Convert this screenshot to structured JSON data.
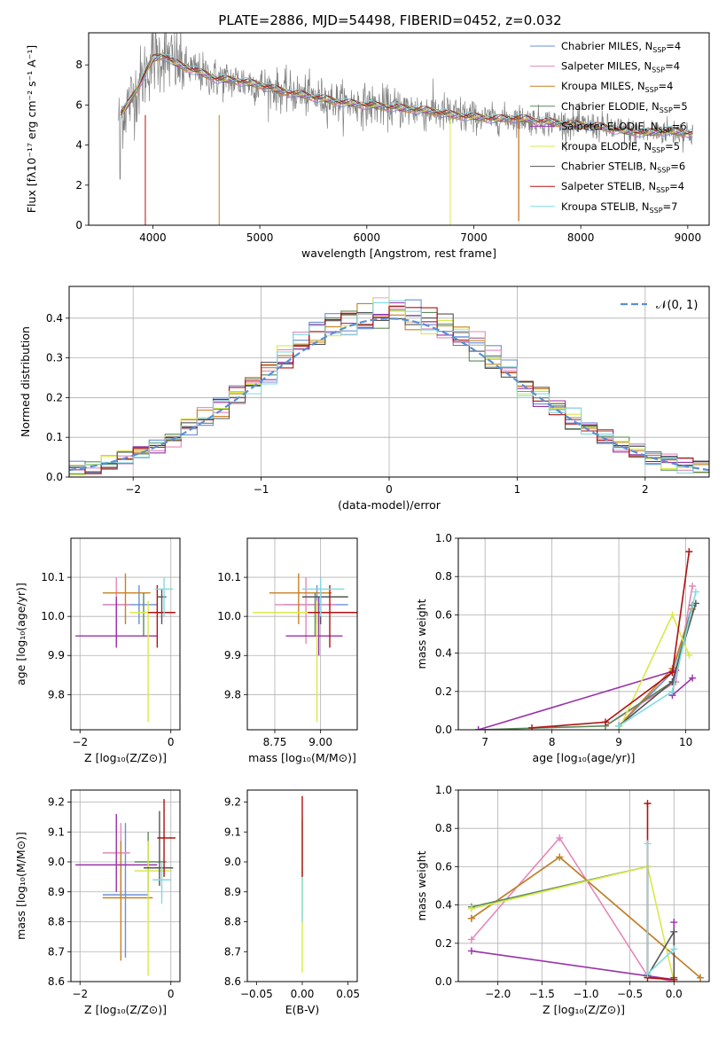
{
  "figure_title": "PLATE=2886, MJD=54498, FIBERID=0452, z=0.032",
  "series": [
    {
      "name": "Chabrier MILES",
      "nssp": "4",
      "color": "#6a8fd8"
    },
    {
      "name": "Salpeter MILES",
      "nssp": "4",
      "color": "#e687b9"
    },
    {
      "name": "Kroupa MILES",
      "nssp": "4",
      "color": "#c8801f"
    },
    {
      "name": "Chabrier ELODIE",
      "nssp": "5",
      "color": "#5c8a5c"
    },
    {
      "name": "Salpeter ELODIE",
      "nssp": "6",
      "color": "#9932aa"
    },
    {
      "name": "Kroupa ELODIE",
      "nssp": "5",
      "color": "#d9e84a"
    },
    {
      "name": "Chabrier STELIB",
      "nssp": "6",
      "color": "#555555"
    },
    {
      "name": "Salpeter STELIB",
      "nssp": "4",
      "color": "#b01010"
    },
    {
      "name": "Kroupa STELIB",
      "nssp": "7",
      "color": "#7fdbe0"
    }
  ],
  "data_color": "#808080",
  "chart_data": [
    {
      "id": "spectrum",
      "type": "line",
      "xlabel": "wavelength [Angstrom, rest frame]",
      "ylabel": "Flux [fλ10⁻¹⁷ erg cm⁻² s⁻¹ A⁻¹]",
      "xlim": [
        3400,
        9200
      ],
      "ylim": [
        0,
        9.6
      ],
      "xticks": [
        4000,
        5000,
        6000,
        7000,
        8000,
        9000
      ],
      "yticks": [
        0,
        2,
        4,
        6,
        8
      ],
      "legend": "top-right",
      "grid": false,
      "continuum": [
        [
          3700,
          5.5
        ],
        [
          3800,
          6.3
        ],
        [
          3900,
          7.3
        ],
        [
          4000,
          8.3
        ],
        [
          4100,
          8.5
        ],
        [
          4200,
          8.1
        ],
        [
          4400,
          7.7
        ],
        [
          4600,
          7.3
        ],
        [
          4800,
          7.2
        ],
        [
          5000,
          7.0
        ],
        [
          5200,
          6.7
        ],
        [
          5400,
          6.5
        ],
        [
          5600,
          6.3
        ],
        [
          5800,
          6.1
        ],
        [
          6000,
          6.0
        ],
        [
          6200,
          5.9
        ],
        [
          6400,
          5.8
        ],
        [
          6600,
          5.7
        ],
        [
          6800,
          5.5
        ],
        [
          7000,
          5.4
        ],
        [
          7200,
          5.3
        ],
        [
          7400,
          5.35
        ],
        [
          7600,
          5.2
        ],
        [
          7800,
          5.1
        ],
        [
          8000,
          5.0
        ],
        [
          8200,
          4.9
        ],
        [
          8400,
          4.7
        ],
        [
          8600,
          4.6
        ],
        [
          8800,
          4.7
        ],
        [
          9000,
          4.6
        ]
      ]
    },
    {
      "id": "residuals",
      "type": "histogram",
      "xlabel": "(data-model)/error",
      "ylabel": "Normed distribution",
      "xlim": [
        -2.5,
        2.5
      ],
      "ylim": [
        0,
        0.48
      ],
      "xticks": [
        -2,
        -1,
        0,
        1,
        2
      ],
      "yticks": [
        0.0,
        0.1,
        0.2,
        0.3,
        0.4
      ],
      "legend": "top-right",
      "grid": true,
      "reference_label": "𝒩(0, 1)",
      "reference_color": "#5b8fd4"
    },
    {
      "id": "age_vs_Z",
      "type": "errorbar",
      "xlabel": "Z [log₁₀(Z/Z⊙)]",
      "ylabel": "age  [log₁₀(age/yr)]",
      "xlim": [
        -2.2,
        0.2
      ],
      "ylim": [
        9.71,
        10.2
      ],
      "xticks": [
        -2,
        0
      ],
      "yticks": [
        9.8,
        9.9,
        10.0,
        10.1
      ],
      "grid": true,
      "points": [
        {
          "s": 0,
          "x": -0.7,
          "y": 10.03,
          "xe": [
            -1.5,
            -0.3
          ],
          "ye": [
            9.98,
            10.08
          ]
        },
        {
          "s": 1,
          "x": -1.2,
          "y": 10.03,
          "xe": [
            -1.5,
            -0.9
          ],
          "ye": [
            9.93,
            10.1
          ]
        },
        {
          "s": 2,
          "x": -1.0,
          "y": 10.06,
          "xe": [
            -1.5,
            -0.45
          ],
          "ye": [
            9.98,
            10.11
          ]
        },
        {
          "s": 3,
          "x": -0.6,
          "y": 10.01,
          "xe": [
            -0.9,
            -0.2
          ],
          "ye": [
            9.95,
            10.06
          ]
        },
        {
          "s": 4,
          "x": -1.2,
          "y": 9.95,
          "xe": [
            -2.1,
            -0.3
          ],
          "ye": [
            9.92,
            10.05
          ]
        },
        {
          "s": 5,
          "x": -0.5,
          "y": 10.01,
          "xe": [
            -0.9,
            -0.1
          ],
          "ye": [
            9.73,
            10.04
          ]
        },
        {
          "s": 6,
          "x": -0.2,
          "y": 10.05,
          "xe": [
            -0.3,
            -0.1
          ],
          "ye": [
            9.98,
            10.07
          ]
        },
        {
          "s": 7,
          "x": -0.3,
          "y": 10.01,
          "xe": [
            -0.5,
            0.1
          ],
          "ye": [
            9.92,
            10.08
          ]
        },
        {
          "s": 8,
          "x": -0.15,
          "y": 10.07,
          "xe": [
            -0.35,
            0.05
          ],
          "ye": [
            10.0,
            10.1
          ]
        }
      ]
    },
    {
      "id": "age_vs_mass",
      "type": "errorbar",
      "xlabel": "mass [log₁₀(M/M⊙)]",
      "ylabel": "",
      "xlim": [
        8.6,
        9.2
      ],
      "ylim": [
        9.71,
        10.2
      ],
      "xticks": [
        8.75,
        9.0
      ],
      "yticks": [
        9.8,
        9.9,
        10.0,
        10.1
      ],
      "grid": true,
      "points": [
        {
          "s": 0,
          "x": 8.98,
          "y": 10.03,
          "xe": [
            8.8,
            9.15
          ],
          "ye": [
            9.98,
            10.08
          ]
        },
        {
          "s": 1,
          "x": 8.92,
          "y": 10.03,
          "xe": [
            8.75,
            9.08
          ],
          "ye": [
            9.93,
            10.1
          ]
        },
        {
          "s": 2,
          "x": 8.88,
          "y": 10.06,
          "xe": [
            8.72,
            9.06
          ],
          "ye": [
            9.98,
            10.11
          ]
        },
        {
          "s": 3,
          "x": 8.97,
          "y": 10.01,
          "xe": [
            8.85,
            9.07
          ],
          "ye": [
            9.95,
            10.06
          ]
        },
        {
          "s": 4,
          "x": 8.99,
          "y": 9.95,
          "xe": [
            8.81,
            9.12
          ],
          "ye": [
            9.9,
            10.05
          ]
        },
        {
          "s": 5,
          "x": 8.98,
          "y": 10.01,
          "xe": [
            8.63,
            9.1
          ],
          "ye": [
            9.73,
            10.04
          ]
        },
        {
          "s": 6,
          "x": 9.0,
          "y": 10.05,
          "xe": [
            8.9,
            9.15
          ],
          "ye": [
            9.98,
            10.07
          ]
        },
        {
          "s": 7,
          "x": 9.05,
          "y": 10.01,
          "xe": [
            8.93,
            9.2
          ],
          "ye": [
            9.92,
            10.08
          ]
        },
        {
          "s": 8,
          "x": 9.0,
          "y": 10.07,
          "xe": [
            8.9,
            9.13
          ],
          "ye": [
            10.0,
            10.1
          ]
        }
      ]
    },
    {
      "id": "weight_vs_age",
      "type": "line",
      "xlabel": "age  [log₁₀(age/yr)]",
      "ylabel": "mass weight",
      "xlim": [
        6.6,
        10.35
      ],
      "ylim": [
        0,
        1.0
      ],
      "xticks": [
        7,
        8,
        9,
        10
      ],
      "yticks": [
        0.0,
        0.2,
        0.4,
        0.6,
        0.8,
        1.0
      ],
      "grid": true,
      "lines": [
        {
          "s": 0,
          "x": [
            9.0,
            9.8,
            10.1
          ],
          "y": [
            0.02,
            0.3,
            0.65
          ]
        },
        {
          "s": 1,
          "x": [
            8.8,
            9.85,
            10.1
          ],
          "y": [
            0.02,
            0.25,
            0.75
          ]
        },
        {
          "s": 2,
          "x": [
            9.0,
            9.8,
            10.1
          ],
          "y": [
            0.02,
            0.32,
            0.63
          ]
        },
        {
          "s": 3,
          "x": [
            6.9,
            8.8,
            9.8,
            10.1
          ],
          "y": [
            0.0,
            0.02,
            0.25,
            0.65
          ]
        },
        {
          "s": 4,
          "x": [
            6.9,
            9.85,
            9.8,
            10.1
          ],
          "y": [
            0.0,
            0.31,
            0.18,
            0.27
          ]
        },
        {
          "s": 5,
          "x": [
            9.0,
            9.8,
            10.05
          ],
          "y": [
            0.0,
            0.6,
            0.39
          ]
        },
        {
          "s": 6,
          "x": [
            9.0,
            9.8,
            10.15
          ],
          "y": [
            0.02,
            0.25,
            0.66
          ]
        },
        {
          "s": 7,
          "x": [
            7.7,
            8.8,
            9.8,
            10.05
          ],
          "y": [
            0.01,
            0.04,
            0.3,
            0.93
          ]
        },
        {
          "s": 8,
          "x": [
            9.0,
            9.8,
            10.15
          ],
          "y": [
            0.02,
            0.2,
            0.72
          ]
        }
      ]
    },
    {
      "id": "mass_vs_Z",
      "type": "errorbar",
      "xlabel": "Z [log₁₀(Z/Z⊙)]",
      "ylabel": "mass [log₁₀(M/M⊙)]",
      "xlim": [
        -2.2,
        0.2
      ],
      "ylim": [
        8.6,
        9.24
      ],
      "xticks": [
        -2,
        0
      ],
      "yticks": [
        8.6,
        8.7,
        8.8,
        8.9,
        9.0,
        9.1,
        9.2
      ],
      "grid": true,
      "points": [
        {
          "s": 0,
          "x": -1.0,
          "y": 8.89,
          "xe": [
            -1.5,
            -0.5
          ],
          "ye": [
            8.68,
            9.13
          ]
        },
        {
          "s": 1,
          "x": -1.1,
          "y": 9.03,
          "xe": [
            -1.5,
            -0.9
          ],
          "ye": [
            8.88,
            9.13
          ]
        },
        {
          "s": 2,
          "x": -1.1,
          "y": 8.88,
          "xe": [
            -1.5,
            -0.4
          ],
          "ye": [
            8.67,
            9.07
          ]
        },
        {
          "s": 3,
          "x": -0.5,
          "y": 9.0,
          "xe": [
            -0.8,
            -0.1
          ],
          "ye": [
            8.9,
            9.1
          ]
        },
        {
          "s": 4,
          "x": -1.2,
          "y": 8.99,
          "xe": [
            -2.1,
            -0.3
          ],
          "ye": [
            8.9,
            9.16
          ]
        },
        {
          "s": 5,
          "x": -0.5,
          "y": 8.97,
          "xe": [
            -0.8,
            0.0
          ],
          "ye": [
            8.62,
            9.07
          ]
        },
        {
          "s": 6,
          "x": -0.25,
          "y": 8.98,
          "xe": [
            -0.6,
            0.05
          ],
          "ye": [
            8.92,
            9.17
          ]
        },
        {
          "s": 7,
          "x": -0.15,
          "y": 9.08,
          "xe": [
            -0.3,
            0.1
          ],
          "ye": [
            8.95,
            9.21
          ]
        },
        {
          "s": 8,
          "x": -0.2,
          "y": 8.94,
          "xe": [
            -0.4,
            0.0
          ],
          "ye": [
            8.86,
            9.0
          ]
        }
      ]
    },
    {
      "id": "mass_vs_ebv",
      "type": "errorbar",
      "xlabel": "E(B-V)",
      "ylabel": "",
      "xlim": [
        -0.06,
        0.06
      ],
      "ylim": [
        8.6,
        9.24
      ],
      "xticks": [
        -0.05,
        0.0,
        0.05
      ],
      "yticks": [
        8.6,
        8.7,
        8.8,
        8.9,
        9.0,
        9.1,
        9.2
      ],
      "grid": false,
      "points": [
        {
          "s": 5,
          "x": 0.0,
          "y": 8.9,
          "xe": [
            0.0,
            0.0
          ],
          "ye": [
            8.63,
            9.15
          ]
        },
        {
          "s": 8,
          "x": 0.0,
          "y": 8.95,
          "xe": [
            0.0,
            0.0
          ],
          "ye": [
            8.8,
            9.14
          ]
        },
        {
          "s": 7,
          "x": 0.0,
          "y": 9.08,
          "xe": [
            0.0,
            0.0
          ],
          "ye": [
            8.95,
            9.22
          ]
        }
      ]
    },
    {
      "id": "weight_vs_Z",
      "type": "line",
      "xlabel": "Z [log₁₀(Z/Z⊙)]",
      "ylabel": "mass weight",
      "xlim": [
        -2.45,
        0.4
      ],
      "ylim": [
        0,
        1.0
      ],
      "xticks": [
        -2.0,
        -1.5,
        -1.0,
        -0.5,
        0.0
      ],
      "yticks": [
        0.0,
        0.2,
        0.4,
        0.6,
        0.8,
        1.0
      ],
      "grid": true,
      "lines": [
        {
          "s": 0,
          "x": [
            -2.3,
            -1.3,
            0.3
          ],
          "y": [
            0.33,
            0.65,
            0.02
          ]
        },
        {
          "s": 1,
          "x": [
            -2.3,
            -1.3,
            -0.3,
            0.0
          ],
          "y": [
            0.22,
            0.75,
            0.03,
            0.0
          ]
        },
        {
          "s": 2,
          "x": [
            -2.3,
            -1.3,
            0.3
          ],
          "y": [
            0.33,
            0.65,
            0.02
          ]
        },
        {
          "s": 3,
          "x": [
            -2.3,
            -0.3,
            -0.3
          ],
          "y": [
            0.39,
            0.6,
            0.03
          ]
        },
        {
          "s": 4,
          "x": [
            -2.3,
            0.0,
            0.0
          ],
          "y": [
            0.16,
            0.01,
            0.31
          ]
        },
        {
          "s": 5,
          "x": [
            -2.3,
            -0.3,
            0.0
          ],
          "y": [
            0.38,
            0.6,
            0.0
          ]
        },
        {
          "s": 6,
          "x": [
            -0.3,
            0.0,
            0.0
          ],
          "y": [
            0.03,
            0.26,
            0.02
          ]
        },
        {
          "s": 7,
          "x": [
            -0.3,
            -0.3,
            0.0
          ],
          "y": [
            0.93,
            0.02,
            0.01
          ]
        },
        {
          "s": 8,
          "x": [
            -0.3,
            -0.3,
            0.0
          ],
          "y": [
            0.72,
            0.04,
            0.17
          ]
        }
      ]
    }
  ]
}
